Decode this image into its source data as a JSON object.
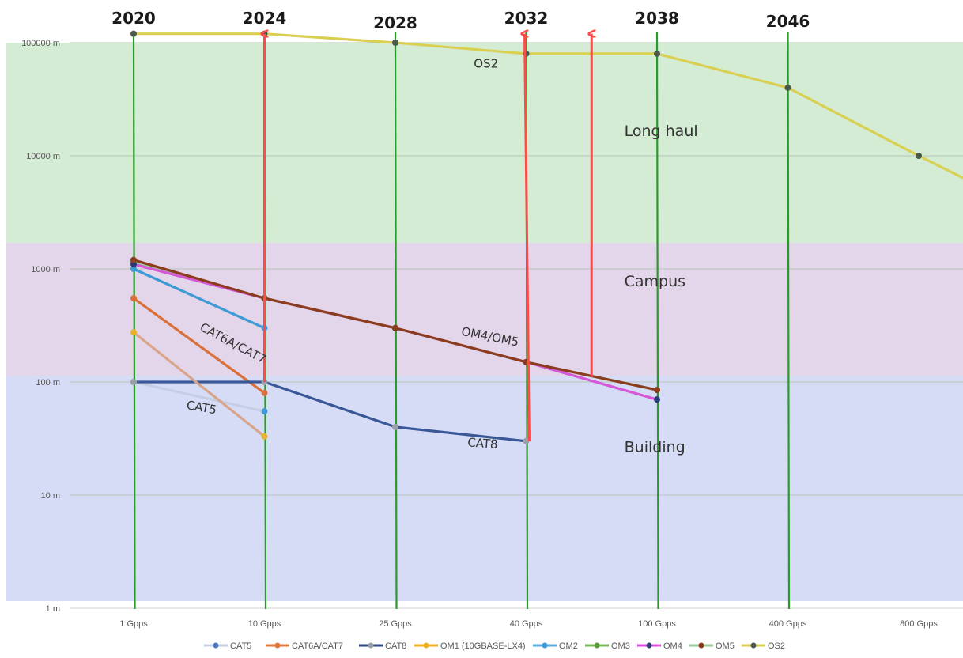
{
  "chart_data": {
    "type": "line",
    "title": "",
    "xlabel": "",
    "ylabel": "",
    "yscale": "log",
    "categories": [
      "1 Gpps",
      "10 Gpps",
      "25 Gpps",
      "40 Gpps",
      "100 Gpps",
      "400 Gpps",
      "800 Gpps"
    ],
    "ylim": [
      1,
      100000
    ],
    "yticks": [
      {
        "value": 1,
        "label": "1 m"
      },
      {
        "value": 10,
        "label": "10 m"
      },
      {
        "value": 100,
        "label": "100 m"
      },
      {
        "value": 1000,
        "label": "1000 m"
      },
      {
        "value": 10000,
        "label": "10000 m"
      },
      {
        "value": 100000,
        "label": "100000 m"
      }
    ],
    "grid": true,
    "legend_position": "bottom",
    "series": [
      {
        "name": "CAT5",
        "color": "#c5cfe3",
        "values": [
          100,
          55,
          null,
          null,
          null,
          null,
          null
        ]
      },
      {
        "name": "CAT6A/CAT7",
        "color": "#d9703a",
        "values": [
          550,
          80,
          null,
          null,
          null,
          null,
          null
        ]
      },
      {
        "name": "CAT8",
        "color": "#3a5898",
        "values": [
          100,
          100,
          40,
          30,
          null,
          null,
          null
        ]
      },
      {
        "name": "OM1 (10GBASE-LX4)",
        "color": "#d9a58a",
        "values": [
          275,
          33,
          null,
          null,
          null,
          null,
          null
        ]
      },
      {
        "name": "OM2",
        "color": "#3e9ad5",
        "values": [
          1000,
          300,
          null,
          null,
          null,
          null,
          null
        ]
      },
      {
        "name": "OM3",
        "color": "#9ac99a",
        "values": [
          1150,
          550,
          300,
          150,
          85,
          null,
          null
        ]
      },
      {
        "name": "OM4",
        "color": "#d658d6",
        "values": [
          1100,
          550,
          300,
          150,
          70,
          null,
          null
        ]
      },
      {
        "name": "OM5",
        "color": "#8a3c1c",
        "values": [
          1200,
          550,
          300,
          150,
          85,
          null,
          null
        ]
      },
      {
        "name": "OS2",
        "color": "#d9cf52",
        "values": [
          120000,
          120000,
          100000,
          80000,
          80000,
          40000,
          10000
        ]
      }
    ],
    "marker_colors": {
      "CAT5": "#3e9ad5",
      "CAT6A/CAT7": "#d9703a",
      "CAT8": "#9aa0a6",
      "OM1 (10GBASE-LX4)": "#e8b22a",
      "OM2": "#3e9ad5",
      "OM3": "#5a9e3a",
      "OM4": "#2e3a78",
      "OM5": "#8a3c1c",
      "OS2": "#4a5a4a"
    },
    "legend_marker_colors": {
      "CAT5": "#4a78c0",
      "CAT6A/CAT7": "#e07a3a",
      "CAT8": "#9aa0a6",
      "OM1 (10GBASE-LX4)": "#f2b01e",
      "OM2": "#3e9ad5",
      "OM3": "#5aa03a",
      "OM4": "#2e3a78",
      "OM5": "#8a3c1c",
      "OS2": "#4a5a4a"
    },
    "legend_line_colors": {
      "CAT5": "#c5cfe3",
      "CAT6A/CAT7": "#e07a3a",
      "CAT8": "#2e4a86",
      "OM1 (10GBASE-LX4)": "#f2b01e",
      "OM2": "#5aaede",
      "OM3": "#7ab85a",
      "OM4": "#e04ae0",
      "OM5": "#9ac99a",
      "OS2": "#d9cf52"
    },
    "regions": [
      {
        "label": "Long haul",
        "from": 1700,
        "to": 100000,
        "color": "#d4ecd4"
      },
      {
        "label": "Campus",
        "from": 113,
        "to": 1700,
        "color": "#e4d6ea"
      },
      {
        "label": "Building",
        "from": 1,
        "to": 113,
        "color": "#d6dcf6"
      }
    ],
    "year_markers": [
      {
        "label": "2020",
        "x": 0
      },
      {
        "label": "2024",
        "x": 1
      },
      {
        "label": "2028",
        "x": 2
      },
      {
        "label": "2032",
        "x": 3
      },
      {
        "label": "2038",
        "x": 4
      },
      {
        "label": "2046",
        "x": 5
      }
    ],
    "arrows": [
      {
        "x": 1,
        "from": 100,
        "to": 120000
      },
      {
        "x": 3,
        "from": 30,
        "to": 120000
      },
      {
        "x": 3.5,
        "from": 110,
        "to": 120000
      }
    ],
    "annotations": [
      {
        "text": "OS2",
        "x": 2.6,
        "y": 60000,
        "rotate": 0
      },
      {
        "text": "CAT6A/CAT7",
        "x": 0.5,
        "y": 290,
        "rotate": 28
      },
      {
        "text": "OM4/OM5",
        "x": 2.5,
        "y": 260,
        "rotate": 11
      },
      {
        "text": "CAT5",
        "x": 0.4,
        "y": 58,
        "rotate": 10
      },
      {
        "text": "CAT8",
        "x": 2.55,
        "y": 27,
        "rotate": 4
      },
      {
        "text": "Long haul",
        "x": 3.75,
        "y": 15000,
        "rotate": 0
      },
      {
        "text": "Campus",
        "x": 3.75,
        "y": 700,
        "rotate": 0
      },
      {
        "text": "Building",
        "x": 3.75,
        "y": 24,
        "rotate": 0
      }
    ]
  }
}
